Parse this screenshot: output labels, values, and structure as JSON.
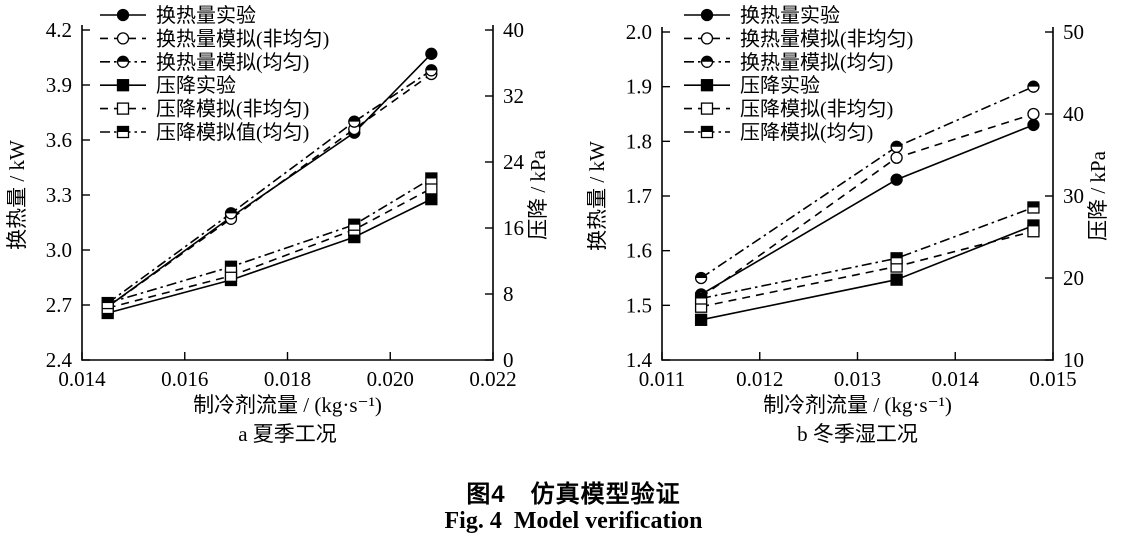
{
  "colors": {
    "ink": "#000000",
    "background": "#ffffff"
  },
  "caption": {
    "zh": "图4　仿真模型验证",
    "en": "Fig. 4 Model verification"
  },
  "chart_data": [
    {
      "id": "a",
      "type": "line",
      "subcaption": "a 夏季工况",
      "xlabel": "制冷剂流量 / (kg·s⁻¹)",
      "ylabel_left": "换热量 / kW",
      "ylabel_right": "压降 / kPa",
      "xlim": [
        0.014,
        0.022
      ],
      "x_ticks": [
        "0.014",
        "0.016",
        "0.018",
        "0.020",
        "0.022"
      ],
      "ylim_left": [
        2.4,
        4.2
      ],
      "y_ticks_left": [
        "2.4",
        "2.7",
        "3.0",
        "3.3",
        "3.6",
        "3.9",
        "4.2"
      ],
      "ylim_right": [
        0,
        40
      ],
      "y_ticks_right": [
        "0",
        "8",
        "16",
        "24",
        "32",
        "40"
      ],
      "grid": false,
      "legend_position": "top-left-inside",
      "x": [
        0.0145,
        0.0169,
        0.0193,
        0.0208
      ],
      "series": [
        {
          "key": "heat-experiment",
          "name": "换热量实验",
          "axis": "left",
          "marker": "circle-filled",
          "line": "solid",
          "values": [
            2.69,
            3.18,
            3.64,
            4.07
          ]
        },
        {
          "key": "heat-sim-nonuniform",
          "name": "换热量模拟(非均匀)",
          "axis": "left",
          "marker": "circle-open",
          "line": "dashed",
          "values": [
            2.69,
            3.17,
            3.66,
            3.96
          ]
        },
        {
          "key": "heat-sim-uniform",
          "name": "换热量模拟(均匀)",
          "axis": "left",
          "marker": "circle-half",
          "line": "dashdot",
          "values": [
            2.71,
            3.2,
            3.7,
            3.98
          ]
        },
        {
          "key": "dp-experiment",
          "name": "压降实验",
          "axis": "right",
          "marker": "square-filled",
          "line": "solid",
          "values": [
            5.7,
            9.7,
            14.9,
            19.5
          ]
        },
        {
          "key": "dp-sim-nonuniform",
          "name": "压降模拟(非均匀)",
          "axis": "right",
          "marker": "square-open",
          "line": "dashed",
          "values": [
            6.3,
            10.2,
            15.8,
            20.8
          ]
        },
        {
          "key": "dp-sim-uniform",
          "name": "压降模拟值(均匀)",
          "axis": "right",
          "marker": "square-half",
          "line": "dashdot",
          "values": [
            6.9,
            11.3,
            16.4,
            22.0
          ]
        }
      ]
    },
    {
      "id": "b",
      "type": "line",
      "subcaption": "b 冬季湿工况",
      "xlabel": "制冷剂流量 / (kg·s⁻¹)",
      "ylabel_left": "换热量 / kW",
      "ylabel_right": "压降 / kPa",
      "xlim": [
        0.011,
        0.015
      ],
      "x_ticks": [
        "0.011",
        "0.012",
        "0.013",
        "0.014",
        "0.015"
      ],
      "ylim_left": [
        1.4,
        2.0
      ],
      "y_ticks_left": [
        "1.4",
        "1.5",
        "1.6",
        "1.7",
        "1.8",
        "1.9",
        "2.0"
      ],
      "ylim_right": [
        10,
        50
      ],
      "y_ticks_right": [
        "10",
        "20",
        "30",
        "40",
        "50"
      ],
      "grid": false,
      "legend_position": "top-left-inside",
      "x": [
        0.0114,
        0.0134,
        0.0148
      ],
      "series": [
        {
          "key": "heat-experiment",
          "name": "换热量实验",
          "axis": "left",
          "marker": "circle-filled",
          "line": "solid",
          "values": [
            1.52,
            1.73,
            1.83
          ]
        },
        {
          "key": "heat-sim-nonuniform",
          "name": "换热量模拟(非均匀)",
          "axis": "left",
          "marker": "circle-open",
          "line": "dashed",
          "values": [
            1.515,
            1.77,
            1.85
          ]
        },
        {
          "key": "heat-sim-uniform",
          "name": "换热量模拟(均匀)",
          "axis": "left",
          "marker": "circle-half",
          "line": "dashdot",
          "values": [
            1.55,
            1.79,
            1.9
          ]
        },
        {
          "key": "dp-experiment",
          "name": "压降实验",
          "axis": "right",
          "marker": "square-filled",
          "line": "solid",
          "values": [
            14.9,
            19.8,
            26.4
          ]
        },
        {
          "key": "dp-sim-nonuniform",
          "name": "压降模拟(非均匀)",
          "axis": "right",
          "marker": "square-open",
          "line": "dashed",
          "values": [
            16.5,
            21.4,
            25.7
          ]
        },
        {
          "key": "dp-sim-uniform",
          "name": "压降模拟(均匀)",
          "axis": "right",
          "marker": "square-half",
          "line": "dashdot",
          "values": [
            17.5,
            22.4,
            28.6
          ]
        }
      ]
    }
  ]
}
